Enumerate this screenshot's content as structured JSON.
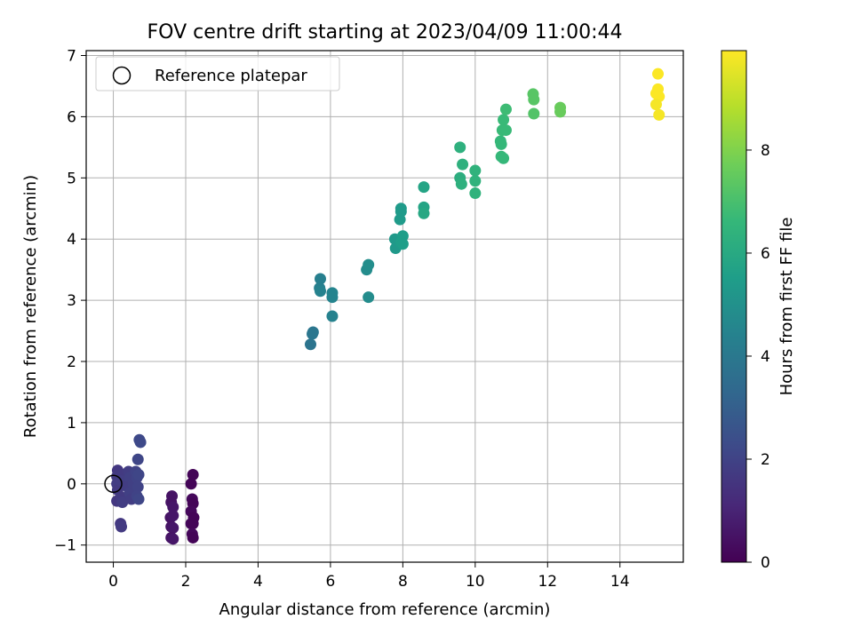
{
  "chart_data": {
    "type": "scatter",
    "title": "FOV centre drift starting at 2023/04/09 11:00:44",
    "xlabel": "Angular distance from reference (arcmin)",
    "ylabel": "Rotation from reference (arcmin)",
    "xlim": [
      -0.75,
      15.75
    ],
    "ylim": [
      -1.28,
      7.08
    ],
    "xticks": [
      0,
      2,
      4,
      6,
      8,
      10,
      12,
      14
    ],
    "yticks": [
      -1,
      0,
      1,
      2,
      3,
      4,
      5,
      6,
      7
    ],
    "xtick_labels": [
      "0",
      "2",
      "4",
      "6",
      "8",
      "10",
      "12",
      "14"
    ],
    "ytick_labels": [
      "−1",
      "0",
      "1",
      "2",
      "3",
      "4",
      "5",
      "6",
      "7"
    ],
    "grid": true,
    "legend": {
      "placement": "top-left",
      "entries": [
        {
          "label": "Reference platepar",
          "marker": "open-circle"
        }
      ]
    },
    "reference_point": {
      "x": 0,
      "y": 0
    },
    "colorbar": {
      "label": "Hours from first FF file",
      "range": [
        0,
        9.93
      ],
      "ticks": [
        0,
        2,
        4,
        6,
        8
      ],
      "tick_labels": [
        "0",
        "2",
        "4",
        "6",
        "8"
      ],
      "colormap": "viridis",
      "stops": [
        "#440154",
        "#482878",
        "#3e4989",
        "#31688e",
        "#26828e",
        "#1f9e89",
        "#35b779",
        "#6ece58",
        "#b5de2b",
        "#fde725"
      ]
    },
    "points": [
      [
        0.12,
        0.22,
        1.6
      ],
      [
        0.1,
        0.12,
        1.7
      ],
      [
        0.1,
        0.0,
        1.8
      ],
      [
        0.12,
        -0.1,
        1.7
      ],
      [
        0.1,
        -0.28,
        1.6
      ],
      [
        0.25,
        0.15,
        1.7
      ],
      [
        0.2,
        0.05,
        1.8
      ],
      [
        0.22,
        -0.22,
        1.7
      ],
      [
        0.25,
        -0.3,
        1.8
      ],
      [
        0.2,
        -0.65,
        1.6
      ],
      [
        0.22,
        -0.7,
        1.7
      ],
      [
        0.42,
        0.2,
        1.8
      ],
      [
        0.45,
        0.1,
        1.9
      ],
      [
        0.4,
        -0.05,
        1.8
      ],
      [
        0.45,
        -0.15,
        1.9
      ],
      [
        0.5,
        -0.25,
        1.8
      ],
      [
        0.55,
        0.0,
        1.9
      ],
      [
        0.62,
        0.2,
        2.0
      ],
      [
        0.65,
        0.1,
        2.0
      ],
      [
        0.7,
        0.15,
        2.1
      ],
      [
        0.68,
        -0.05,
        2.0
      ],
      [
        0.65,
        -0.2,
        2.0
      ],
      [
        0.7,
        -0.25,
        2.1
      ],
      [
        0.68,
        0.4,
        2.1
      ],
      [
        0.72,
        0.72,
        2.2
      ],
      [
        0.75,
        0.68,
        2.2
      ],
      [
        1.62,
        -0.2,
        0.5
      ],
      [
        1.6,
        -0.3,
        0.5
      ],
      [
        1.65,
        -0.38,
        0.6
      ],
      [
        1.58,
        -0.55,
        0.5
      ],
      [
        1.65,
        -0.52,
        0.6
      ],
      [
        1.6,
        -0.7,
        0.5
      ],
      [
        1.65,
        -0.72,
        0.6
      ],
      [
        1.6,
        -0.88,
        0.5
      ],
      [
        1.65,
        -0.9,
        0.6
      ],
      [
        2.2,
        0.15,
        0.1
      ],
      [
        2.15,
        0.0,
        0.1
      ],
      [
        2.18,
        -0.25,
        0.2
      ],
      [
        2.2,
        -0.32,
        0.1
      ],
      [
        2.15,
        -0.45,
        0.2
      ],
      [
        2.22,
        -0.55,
        0.1
      ],
      [
        2.15,
        -0.65,
        0.2
      ],
      [
        2.2,
        -0.65,
        0.1
      ],
      [
        2.18,
        -0.82,
        0.2
      ],
      [
        2.2,
        -0.88,
        0.1
      ],
      [
        5.45,
        2.28,
        3.8
      ],
      [
        5.5,
        2.45,
        3.9
      ],
      [
        5.52,
        2.48,
        3.9
      ],
      [
        5.72,
        3.35,
        4.3
      ],
      [
        5.7,
        3.2,
        4.3
      ],
      [
        5.72,
        3.15,
        4.4
      ],
      [
        6.05,
        3.12,
        4.5
      ],
      [
        6.05,
        3.05,
        4.5
      ],
      [
        6.05,
        2.74,
        4.4
      ],
      [
        7.0,
        3.5,
        4.8
      ],
      [
        7.05,
        3.58,
        4.9
      ],
      [
        7.05,
        3.05,
        4.8
      ],
      [
        7.78,
        4.0,
        5.3
      ],
      [
        7.8,
        3.85,
        5.3
      ],
      [
        7.95,
        4.5,
        5.4
      ],
      [
        7.95,
        4.45,
        5.4
      ],
      [
        7.92,
        4.32,
        5.4
      ],
      [
        8.0,
        4.05,
        5.5
      ],
      [
        7.95,
        3.95,
        5.5
      ],
      [
        8.0,
        3.92,
        5.5
      ],
      [
        8.58,
        4.85,
        5.8
      ],
      [
        8.58,
        4.52,
        5.8
      ],
      [
        8.58,
        4.42,
        5.9
      ],
      [
        9.58,
        5.5,
        6.3
      ],
      [
        9.65,
        5.22,
        6.3
      ],
      [
        9.58,
        5.0,
        6.2
      ],
      [
        9.62,
        4.9,
        6.3
      ],
      [
        10.0,
        5.12,
        6.4
      ],
      [
        10.0,
        4.95,
        6.4
      ],
      [
        10.0,
        4.75,
        6.4
      ],
      [
        10.7,
        5.6,
        6.6
      ],
      [
        10.72,
        5.55,
        6.6
      ],
      [
        10.75,
        5.78,
        6.7
      ],
      [
        10.78,
        5.95,
        6.7
      ],
      [
        10.85,
        6.12,
        6.8
      ],
      [
        10.85,
        5.78,
        6.7
      ],
      [
        10.72,
        5.35,
        6.6
      ],
      [
        10.78,
        5.32,
        6.6
      ],
      [
        11.6,
        6.37,
        7.3
      ],
      [
        11.62,
        6.28,
        7.3
      ],
      [
        11.62,
        6.05,
        7.2
      ],
      [
        12.35,
        6.15,
        7.6
      ],
      [
        12.35,
        6.08,
        7.6
      ],
      [
        15.05,
        6.7,
        9.9
      ],
      [
        15.05,
        6.45,
        9.9
      ],
      [
        15.0,
        6.38,
        9.9
      ],
      [
        15.08,
        6.33,
        9.9
      ],
      [
        15.0,
        6.2,
        9.8
      ],
      [
        15.08,
        6.03,
        9.8
      ]
    ]
  }
}
